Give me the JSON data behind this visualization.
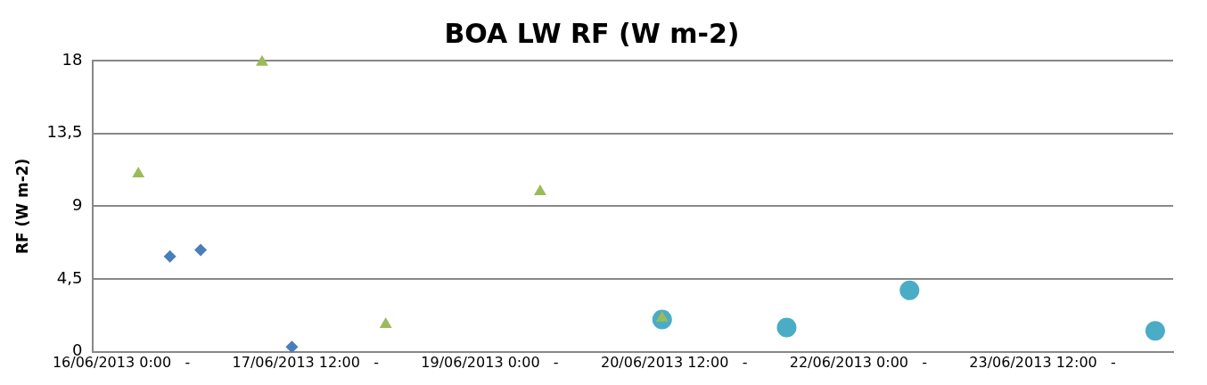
{
  "chart_data": {
    "type": "scatter",
    "title": "BOA LW RF (W m-2)",
    "ylabel": "RF (W m-2)",
    "xlim": [
      "2013-06-15T18:30",
      "2013-06-24T13:30"
    ],
    "xticks": [
      {
        "value": "2013-06-16T00:00",
        "label": "16/06/2013 0:00   -"
      },
      {
        "value": "2013-06-17T12:00",
        "label": "17/06/2013 12:00   -"
      },
      {
        "value": "2013-06-19T00:00",
        "label": "19/06/2013 0:00   -"
      },
      {
        "value": "2013-06-20T12:00",
        "label": "20/06/2013 12:00   -"
      },
      {
        "value": "2013-06-22T00:00",
        "label": "22/06/2013 0:00   -"
      },
      {
        "value": "2013-06-23T12:00",
        "label": "23/06/2013 12:00   -"
      }
    ],
    "ylim": [
      0,
      18
    ],
    "yticks": [
      0,
      {
        "value": 4.5,
        "label": "4,5"
      },
      9,
      {
        "value": 13.5,
        "label": "13,5"
      },
      18
    ],
    "grid": "y",
    "series": [
      {
        "color": "#4a7ebb",
        "marker": "diamond",
        "x": [
          "2013-06-16T09:30",
          "2013-06-16T15:30",
          "2013-06-17T09:20"
        ],
        "values": [
          5.9,
          6.3,
          0.3
        ]
      },
      {
        "color": "#9bbb59",
        "marker": "triangle",
        "x": [
          "2013-06-16T03:20",
          "2013-06-17T03:30",
          "2013-06-18T03:40",
          "2013-06-19T09:50",
          "2013-06-20T09:40"
        ],
        "values": [
          11,
          17.9,
          1.7,
          9.9,
          2.1
        ]
      },
      {
        "color": "#4bacc6",
        "marker": "circle",
        "x": [
          "2013-06-20T09:40",
          "2013-06-21T10:00",
          "2013-06-22T10:00",
          "2013-06-24T10:00"
        ],
        "values": [
          2,
          1.5,
          3.8,
          1.3
        ]
      }
    ]
  }
}
